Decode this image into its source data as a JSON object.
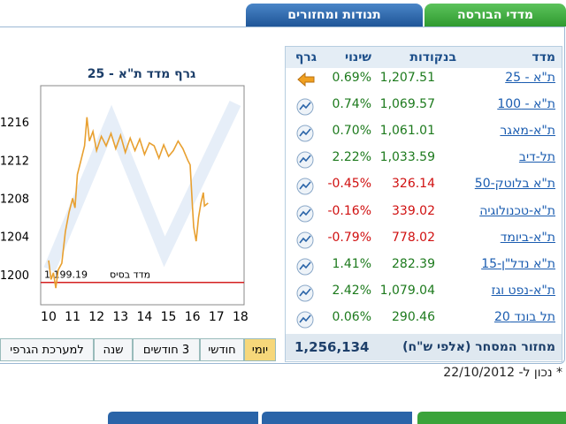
{
  "tabs": [
    "מדדי הבורסה",
    "תנודות ומחזורים"
  ],
  "table": {
    "headers": [
      "מדד",
      "בנקודות",
      "שינוי",
      "גרף"
    ],
    "rows": [
      [
        "ת\"א - 25",
        "1,207.51",
        "0.69%"
      ],
      [
        "ת\"א - 100",
        "1,069.57",
        "0.74%"
      ],
      [
        "ת\"א-מאגר",
        "1,061.01",
        "0.70%"
      ],
      [
        "תל-דיב",
        "1,033.59",
        "2.22%"
      ],
      [
        "ת\"א בלוטק-50",
        "326.14",
        "-0.45%"
      ],
      [
        "ת\"א-טכנולוגיה",
        "339.02",
        "-0.16%"
      ],
      [
        "ת\"א-ביומד",
        "778.02",
        "-0.79%"
      ],
      [
        "ת\"א נדל\"ן-15",
        "282.39",
        "1.41%"
      ],
      [
        "ת\"א-נפט וגז",
        "1,079.04",
        "2.42%"
      ],
      [
        "תל בונד 20",
        "290.46",
        "0.06%"
      ]
    ],
    "footer": {
      "label": "מחזור המסחר (אלפי ש\"ח)",
      "value": "1,256,134"
    }
  },
  "chart_data": {
    "type": "line",
    "title": "גרף מדד ת\"א - 25",
    "x": [
      10.0,
      10.1,
      10.2,
      10.3,
      10.4,
      10.55,
      10.7,
      10.85,
      11.0,
      11.1,
      11.2,
      11.35,
      11.5,
      11.6,
      11.7,
      11.85,
      12.0,
      12.2,
      12.4,
      12.6,
      12.8,
      13.0,
      13.2,
      13.4,
      13.6,
      13.8,
      14.0,
      14.2,
      14.4,
      14.6,
      14.8,
      15.0,
      15.2,
      15.4,
      15.6,
      15.8,
      15.9,
      16.0,
      16.05,
      16.15,
      16.25,
      16.35,
      16.45,
      16.5,
      16.65
    ],
    "values": [
      1201.5,
      1199.5,
      1200.2,
      1198.6,
      1200.5,
      1201.2,
      1204.5,
      1206.5,
      1208.0,
      1207.0,
      1210.5,
      1212.0,
      1213.5,
      1216.5,
      1214.0,
      1215.0,
      1213.0,
      1214.5,
      1213.5,
      1214.8,
      1213.2,
      1214.6,
      1212.8,
      1214.3,
      1213.0,
      1214.2,
      1212.6,
      1213.8,
      1213.5,
      1212.2,
      1213.6,
      1212.4,
      1213.0,
      1214.0,
      1213.2,
      1212.0,
      1211.5,
      1207.0,
      1205.0,
      1203.5,
      1206.0,
      1207.5,
      1208.6,
      1207.2,
      1207.5
    ],
    "color": "#e8a030",
    "xlim": [
      9.67,
      18.15
    ],
    "ylim": [
      1196.85,
      1219.8
    ],
    "xticks": [
      10,
      11,
      12,
      13,
      14,
      15,
      16,
      17,
      18
    ],
    "yticks": [
      1200,
      1204,
      1208,
      1212,
      1216
    ],
    "baseline": {
      "label": "מדד בסיס",
      "value": 1199.19,
      "value_label": "1,199.19",
      "color": "#d42020"
    }
  },
  "range_buttons": [
    "יומי",
    "חודשי",
    "3 חודשים",
    "שנה",
    "למערכת הגרפי"
  ],
  "note": "* נכון ל- 22/10/2012"
}
